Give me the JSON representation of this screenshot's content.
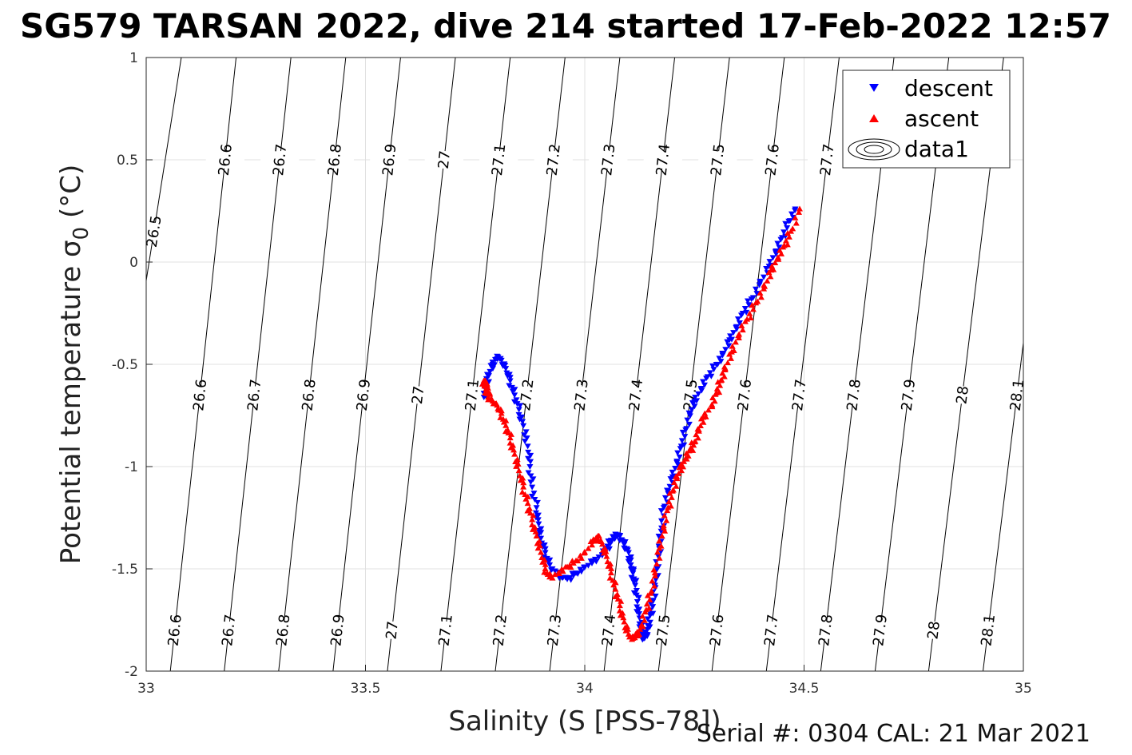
{
  "chart_data": {
    "type": "scatter",
    "title": "SG579 TARSAN 2022, dive 214 started 17-Feb-2022 12:57",
    "xlabel": "Salinity (S [PSS-78])",
    "ylabel": "Potential temperature σ",
    "ylabel_sub": "0",
    "ylabel_unit": " (°C)",
    "xlim": [
      33,
      35
    ],
    "ylim": [
      -2,
      1
    ],
    "xticks": [
      33,
      33.5,
      34,
      34.5,
      35
    ],
    "xtick_labels": [
      "33",
      "33.5",
      "34",
      "34.5",
      "35"
    ],
    "yticks": [
      -2,
      -1.5,
      -1,
      -0.5,
      0,
      0.5,
      1
    ],
    "ytick_labels": [
      "-2",
      "-1.5",
      "-1",
      "-0.5",
      "0",
      "0.5",
      "1"
    ],
    "grid": true,
    "legend_position": "top-right",
    "legend": [
      "descent",
      "ascent",
      "data1"
    ],
    "footer": "Serial #: 0304  CAL: 21 Mar 2021",
    "colors": {
      "descent": "#0000ff",
      "ascent": "#ff0000",
      "contour": "#000000",
      "grid": "#e0e0e0"
    },
    "isopycnals": [
      {
        "value": 26.5,
        "label": "26.5",
        "top_x": 33.08,
        "bottom_x": 32.86
      },
      {
        "value": 26.6,
        "label": "26.6",
        "top_x": 33.205,
        "bottom_x": 33.055
      },
      {
        "value": 26.7,
        "label": "26.7",
        "top_x": 33.33,
        "bottom_x": 33.178
      },
      {
        "value": 26.8,
        "label": "26.8",
        "top_x": 33.455,
        "bottom_x": 33.302
      },
      {
        "value": 26.9,
        "label": "26.9",
        "top_x": 33.58,
        "bottom_x": 33.426
      },
      {
        "value": 27,
        "label": "27",
        "top_x": 33.705,
        "bottom_x": 33.55
      },
      {
        "value": 27.1,
        "label": "27.1",
        "top_x": 33.83,
        "bottom_x": 33.672
      },
      {
        "value": 27.2,
        "label": "27.2",
        "top_x": 33.955,
        "bottom_x": 33.796
      },
      {
        "value": 27.3,
        "label": "27.3",
        "top_x": 34.08,
        "bottom_x": 33.92
      },
      {
        "value": 27.4,
        "label": "27.4",
        "top_x": 34.205,
        "bottom_x": 34.044
      },
      {
        "value": 27.5,
        "label": "27.5",
        "top_x": 34.33,
        "bottom_x": 34.168
      },
      {
        "value": 27.6,
        "label": "27.6",
        "top_x": 34.455,
        "bottom_x": 34.29
      },
      {
        "value": 27.7,
        "label": "27.7",
        "top_x": 34.58,
        "bottom_x": 34.414
      },
      {
        "value": 27.8,
        "label": "27.8",
        "top_x": 34.705,
        "bottom_x": 34.538
      },
      {
        "value": 27.9,
        "label": "27.9",
        "top_x": 34.83,
        "bottom_x": 34.662
      },
      {
        "value": 28,
        "label": "28",
        "top_x": 34.955,
        "bottom_x": 34.784
      },
      {
        "value": 28.1,
        "label": "28.1",
        "top_x": 35.08,
        "bottom_x": 34.908
      }
    ],
    "series": [
      {
        "name": "descent",
        "marker": "down-triangle",
        "x": [
          34.48,
          34.465,
          34.45,
          34.435,
          34.42,
          34.4,
          34.38,
          34.36,
          34.345,
          34.33,
          34.315,
          34.3,
          34.28,
          34.265,
          34.25,
          34.24,
          34.23,
          34.22,
          34.21,
          34.2,
          34.19,
          34.18,
          34.175,
          34.17,
          34.165,
          34.16,
          34.155,
          34.15,
          34.145,
          34.14,
          34.135,
          34.13,
          34.125,
          34.12,
          34.115,
          34.11,
          34.105,
          34.1,
          34.09,
          34.08,
          34.07,
          34.06,
          34.05,
          34.04,
          34.02,
          34.0,
          33.98,
          33.96,
          33.94,
          33.92,
          33.91,
          33.9,
          33.895,
          33.89,
          33.88,
          33.875,
          33.87,
          33.86,
          33.85,
          33.84,
          33.83,
          33.82,
          33.81,
          33.8,
          33.79,
          33.78,
          33.775,
          33.77
        ],
        "y": [
          0.26,
          0.2,
          0.12,
          0.05,
          -0.02,
          -0.1,
          -0.18,
          -0.25,
          -0.32,
          -0.38,
          -0.45,
          -0.5,
          -0.56,
          -0.62,
          -0.68,
          -0.74,
          -0.82,
          -0.9,
          -0.98,
          -1.05,
          -1.12,
          -1.2,
          -1.3,
          -1.4,
          -1.5,
          -1.58,
          -1.66,
          -1.72,
          -1.78,
          -1.82,
          -1.84,
          -1.8,
          -1.74,
          -1.66,
          -1.58,
          -1.52,
          -1.48,
          -1.42,
          -1.38,
          -1.34,
          -1.33,
          -1.36,
          -1.4,
          -1.43,
          -1.46,
          -1.49,
          -1.52,
          -1.55,
          -1.53,
          -1.48,
          -1.42,
          -1.35,
          -1.28,
          -1.2,
          -1.1,
          -1.0,
          -0.9,
          -0.8,
          -0.72,
          -0.65,
          -0.58,
          -0.52,
          -0.48,
          -0.46,
          -0.5,
          -0.55,
          -0.6,
          -0.66
        ]
      },
      {
        "name": "ascent",
        "marker": "up-triangle",
        "x": [
          34.49,
          34.47,
          34.455,
          34.44,
          34.425,
          34.41,
          34.39,
          34.37,
          34.35,
          34.335,
          34.32,
          34.31,
          34.3,
          34.29,
          34.27,
          34.26,
          34.25,
          34.24,
          34.23,
          34.22,
          34.21,
          34.2,
          34.19,
          34.18,
          34.17,
          34.16,
          34.15,
          34.14,
          34.13,
          34.12,
          34.11,
          34.1,
          34.09,
          34.08,
          34.07,
          34.06,
          34.05,
          34.04,
          34.03,
          34.02,
          34.0,
          33.98,
          33.96,
          33.94,
          33.92,
          33.91,
          33.9,
          33.89,
          33.88,
          33.87,
          33.86,
          33.85,
          33.84,
          33.83,
          33.82,
          33.81,
          33.8,
          33.79,
          33.78,
          33.775,
          33.77,
          33.775,
          33.78
        ],
        "y": [
          0.26,
          0.15,
          0.08,
          0.02,
          -0.04,
          -0.12,
          -0.2,
          -0.28,
          -0.36,
          -0.44,
          -0.52,
          -0.58,
          -0.64,
          -0.7,
          -0.76,
          -0.82,
          -0.88,
          -0.92,
          -0.96,
          -1.0,
          -1.05,
          -1.12,
          -1.2,
          -1.3,
          -1.4,
          -1.52,
          -1.62,
          -1.7,
          -1.78,
          -1.82,
          -1.84,
          -1.82,
          -1.76,
          -1.68,
          -1.6,
          -1.52,
          -1.44,
          -1.38,
          -1.34,
          -1.36,
          -1.42,
          -1.46,
          -1.49,
          -1.52,
          -1.54,
          -1.5,
          -1.42,
          -1.34,
          -1.26,
          -1.18,
          -1.1,
          -1.02,
          -0.94,
          -0.86,
          -0.8,
          -0.74,
          -0.7,
          -0.68,
          -0.66,
          -0.62,
          -0.58,
          -0.6,
          -0.64
        ]
      }
    ]
  }
}
